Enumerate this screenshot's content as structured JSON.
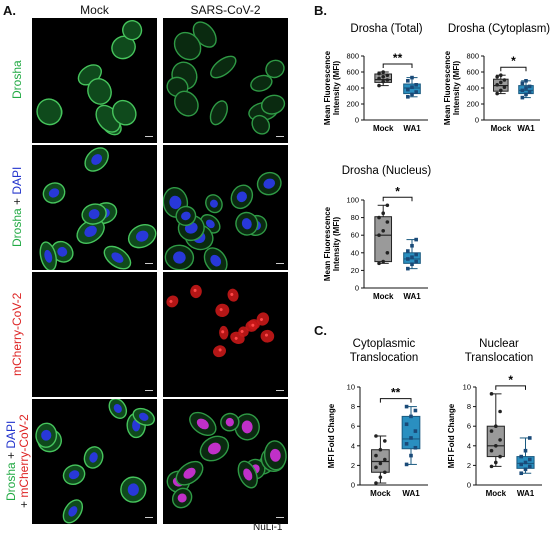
{
  "panelA": {
    "letter": "A.",
    "col_mock": "Mock",
    "col_sars": "SARS-CoV-2",
    "rows": [
      {
        "label_parts": [
          {
            "text": "Drosha",
            "color": "#22aa44"
          }
        ]
      },
      {
        "label_parts": [
          {
            "text": "Drosha",
            "color": "#22aa44"
          },
          {
            "text": " + ",
            "color": "#111111"
          },
          {
            "text": "DAPI",
            "color": "#2233cc"
          }
        ]
      },
      {
        "label_parts": [
          {
            "text": "mCherry-CoV-2",
            "color": "#dd2222"
          }
        ]
      },
      {
        "label_parts": [
          {
            "text": "Drosha",
            "color": "#22aa44"
          },
          {
            "text": " + ",
            "color": "#111111"
          },
          {
            "text": "DAPI",
            "color": "#2233cc"
          }
        ],
        "label2_parts": [
          {
            "text": "+ ",
            "color": "#111111"
          },
          {
            "text": "mCherry-CoV-2",
            "color": "#dd2222"
          }
        ]
      }
    ],
    "footer": "NuLi-1"
  },
  "panelB": {
    "letter": "B."
  },
  "panelC": {
    "letter": "C."
  },
  "chart_data": [
    {
      "type": "box",
      "title": "Drosha (Total)",
      "ylabel": "Mean Fluorescence Intensity (MFI)",
      "ylim": [
        0,
        800
      ],
      "yticks": [
        0,
        200,
        400,
        600,
        800
      ],
      "categories": [
        "Mock",
        "WA1"
      ],
      "series": [
        {
          "box": [
            470,
            505,
            575
          ],
          "whisker": [
            430,
            600
          ],
          "points": [
            430,
            480,
            500,
            520,
            540,
            560,
            580,
            600
          ]
        },
        {
          "box": [
            330,
            400,
            450
          ],
          "whisker": [
            290,
            530
          ],
          "points": [
            290,
            320,
            350,
            380,
            410,
            440,
            490,
            530
          ]
        }
      ],
      "significance": "**"
    },
    {
      "type": "box",
      "title": "Drosha (Cytoplasm)",
      "ylabel": "Mean Fluorescence Intensity (MFI)",
      "ylim": [
        0,
        800
      ],
      "yticks": [
        0,
        200,
        400,
        600,
        800
      ],
      "categories": [
        "Mock",
        "WA1"
      ],
      "series": [
        {
          "box": [
            360,
            430,
            510
          ],
          "whisker": [
            330,
            560
          ],
          "points": [
            330,
            370,
            410,
            440,
            470,
            500,
            540,
            560
          ]
        },
        {
          "box": [
            330,
            370,
            430
          ],
          "whisker": [
            280,
            490
          ],
          "points": [
            280,
            320,
            350,
            370,
            400,
            420,
            460,
            490
          ]
        }
      ],
      "significance": "*"
    },
    {
      "type": "box",
      "title": "Drosha (Nucleus)",
      "ylabel": "Mean Fluorescence Intensity (MFI)",
      "ylim": [
        0,
        100
      ],
      "yticks": [
        0,
        20,
        40,
        60,
        80,
        100
      ],
      "categories": [
        "Mock",
        "WA1"
      ],
      "series": [
        {
          "box": [
            30,
            60,
            81
          ],
          "whisker": [
            28,
            94
          ],
          "points": [
            28,
            30,
            40,
            60,
            65,
            75,
            80,
            85,
            94
          ]
        },
        {
          "box": [
            28,
            33,
            40
          ],
          "whisker": [
            22,
            55
          ],
          "points": [
            22,
            27,
            30,
            33,
            35,
            38,
            42,
            48,
            55
          ]
        }
      ],
      "significance": "*"
    },
    {
      "type": "box",
      "title": "Cytoplasmic Translocation",
      "ylabel": "MFI Fold Change",
      "ylim": [
        0,
        10
      ],
      "yticks": [
        0,
        2,
        4,
        6,
        8,
        10
      ],
      "categories": [
        "Mock",
        "WA1"
      ],
      "series": [
        {
          "box": [
            1.3,
            2.4,
            3.6
          ],
          "whisker": [
            0.2,
            5.0
          ],
          "points": [
            0.2,
            0.8,
            1.3,
            1.8,
            2.2,
            2.6,
            3.0,
            3.6,
            4.5,
            5.0
          ]
        },
        {
          "box": [
            3.7,
            4.7,
            7.0
          ],
          "whisker": [
            2.1,
            8.0
          ],
          "points": [
            2.1,
            3.0,
            3.8,
            4.2,
            4.8,
            5.5,
            6.2,
            7.0,
            7.6,
            8.0
          ]
        }
      ],
      "significance": "**"
    },
    {
      "type": "box",
      "title": "Nuclear Translocation",
      "ylabel": "MFI Fold Change",
      "ylim": [
        0,
        10
      ],
      "yticks": [
        0,
        2,
        4,
        6,
        8,
        10
      ],
      "categories": [
        "Mock",
        "WA1"
      ],
      "series": [
        {
          "box": [
            2.9,
            4.0,
            6.0
          ],
          "whisker": [
            1.9,
            9.3
          ],
          "points": [
            1.9,
            2.3,
            2.9,
            3.5,
            4.0,
            4.6,
            5.5,
            6.0,
            7.5,
            9.3
          ]
        },
        {
          "box": [
            1.7,
            2.2,
            2.9
          ],
          "whisker": [
            1.2,
            4.8
          ],
          "points": [
            1.2,
            1.6,
            1.9,
            2.1,
            2.3,
            2.6,
            2.9,
            3.5,
            4.8
          ]
        }
      ],
      "significance": "*"
    }
  ]
}
